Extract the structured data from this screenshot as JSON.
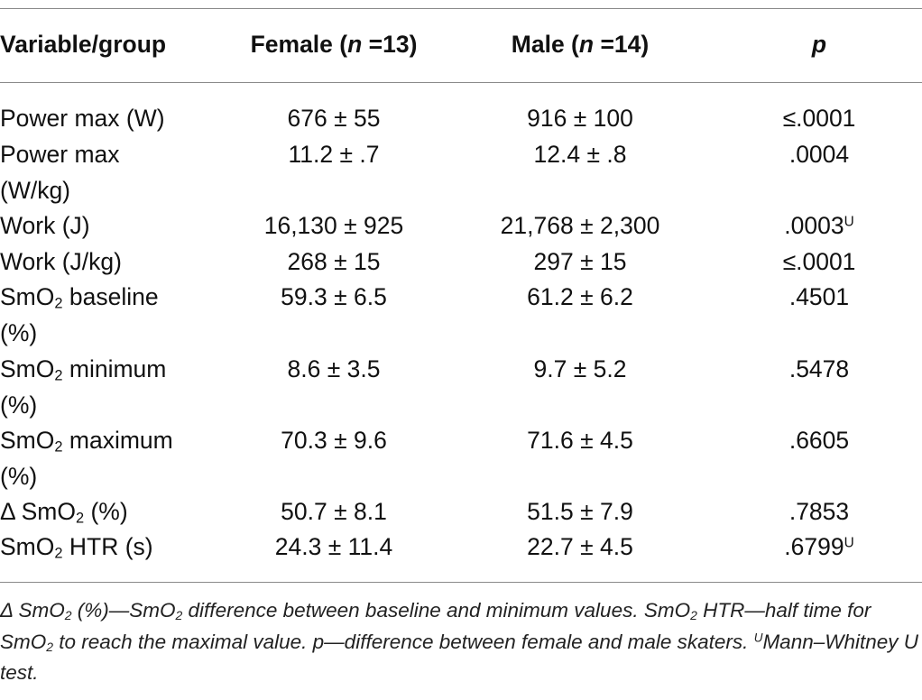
{
  "table": {
    "headers": {
      "variable": "Variable/group",
      "female_prefix": "Female (",
      "female_n": "n",
      "female_suffix": " =13)",
      "male_prefix": "Male (",
      "male_n": "n",
      "male_suffix": " =14)",
      "p": "p"
    },
    "rows": [
      {
        "label": "Power max (W)",
        "female": "676 ± 55",
        "male": "916 ± 100",
        "p": "≤.0001",
        "p_sup": ""
      },
      {
        "label": "Power max (W/kg)",
        "female": "11.2 ± .7",
        "male": "12.4 ± .8",
        "p": ".0004",
        "p_sup": ""
      },
      {
        "label": "Work (J)",
        "female": "16,130 ± 925",
        "male": "21,768 ± 2,300",
        "p": ".0003",
        "p_sup": "U"
      },
      {
        "label": "Work (J/kg)",
        "female": "268 ± 15",
        "male": "297 ± 15",
        "p": "≤.0001",
        "p_sup": ""
      },
      {
        "label_pre": "SmO",
        "label_sub": "2",
        "label_post": " baseline (%)",
        "female": "59.3 ± 6.5",
        "male": "61.2 ± 6.2",
        "p": ".4501",
        "p_sup": ""
      },
      {
        "label_pre": "SmO",
        "label_sub": "2",
        "label_post": " minimum (%)",
        "female": "8.6 ± 3.5",
        "male": "9.7 ± 5.2",
        "p": ".5478",
        "p_sup": ""
      },
      {
        "label_pre": "SmO",
        "label_sub": "2",
        "label_post": " maximum (%)",
        "female": "70.3 ± 9.6",
        "male": "71.6 ± 4.5",
        "p": ".6605",
        "p_sup": ""
      },
      {
        "label_pre": "Δ SmO",
        "label_sub": "2",
        "label_post": " (%)",
        "female": "50.7 ± 8.1",
        "male": "51.5 ± 7.9",
        "p": ".7853",
        "p_sup": ""
      },
      {
        "label_pre": "SmO",
        "label_sub": "2",
        "label_post": " HTR (s)",
        "female": "24.3 ± 11.4",
        "male": "22.7 ± 4.5",
        "p": ".6799",
        "p_sup": "U"
      }
    ]
  },
  "footnote": {
    "part1": "Δ SmO",
    "sub1": "2",
    "part2": " (%)—SmO",
    "sub2": "2",
    "part3": " difference between baseline and minimum values. SmO",
    "sub3": "2",
    "part4": " HTR—half time for SmO",
    "sub4": "2",
    "part5": " to reach the maximal value. p—difference between female and male skaters. ",
    "sup1": "U",
    "part6": "Mann–Whitney U test."
  }
}
